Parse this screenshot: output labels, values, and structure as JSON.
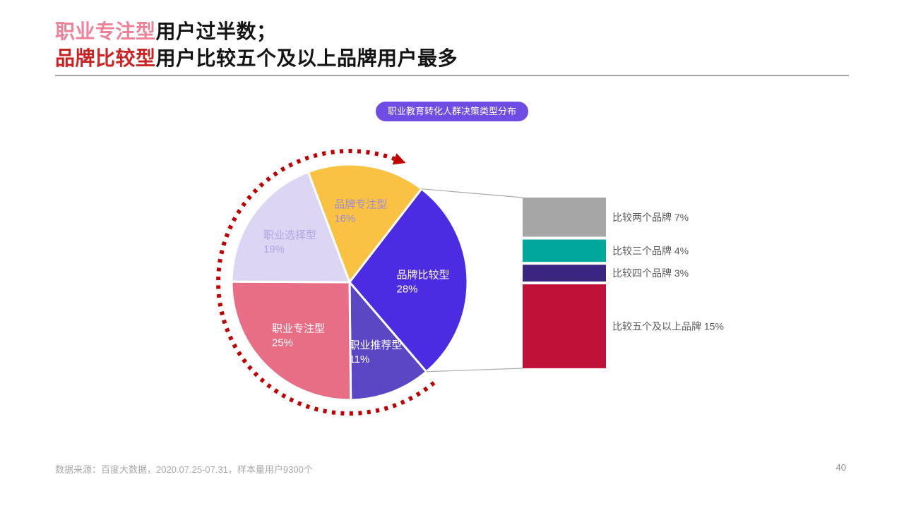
{
  "title": {
    "line1": [
      {
        "text": "职业专注型",
        "color": "#EE8299"
      },
      {
        "text": "用户过半数；",
        "color": "#141414"
      }
    ],
    "line2": [
      {
        "text": "品牌比较型",
        "color": "#CB2222"
      },
      {
        "text": "用户比较五个及以上品牌用户最多",
        "color": "#141414"
      }
    ]
  },
  "badge": {
    "text": "职业教育转化人群决策类型分布",
    "bg_color": "#6F4DE5"
  },
  "chart_data": {
    "type": "pie",
    "subtype": "bar-of-pie",
    "title": "职业教育转化人群决策类型分布",
    "unit": "%",
    "pie": {
      "start_angle_deg": -20.6,
      "slices": [
        {
          "label": "品牌专注型",
          "value": 16,
          "color": "#FAC243",
          "label_color": "#9C8BD8"
        },
        {
          "label": "品牌比较型",
          "value": 28,
          "color": "#4C2CE2",
          "label_color": "#FFFFFF"
        },
        {
          "label": "职业推荐型",
          "value": 11,
          "color": "#5B46C4",
          "label_color": "#FFFFFF"
        },
        {
          "label": "职业专注型",
          "value": 25,
          "color": "#E86E85",
          "label_color": "#FFFFFF"
        },
        {
          "label": "职业选择型",
          "value": 19,
          "color": "#DDD5F4",
          "label_color": "#B3A6E3"
        }
      ]
    },
    "breakdown_bars": {
      "parent_slice": "品牌比较型",
      "items": [
        {
          "label": "比较两个品牌",
          "value": 7,
          "color": "#A6A6A6"
        },
        {
          "label": "比较三个品牌",
          "value": 4,
          "color": "#00A79B"
        },
        {
          "label": "比较四个品牌",
          "value": 3,
          "color": "#3A2580"
        },
        {
          "label": "比较五个及以上品牌",
          "value": 15,
          "color": "#C01238"
        }
      ],
      "label_color": "#595959",
      "leader_line_color": "#ABABAB"
    },
    "annotations": {
      "dotted_circle_color": "#C00000",
      "legend_position": "none",
      "grid": false
    }
  },
  "footer": {
    "source": "数据来源：百度大数据，2020.07.25-07.31，样本量用户9300个",
    "page": "40"
  }
}
